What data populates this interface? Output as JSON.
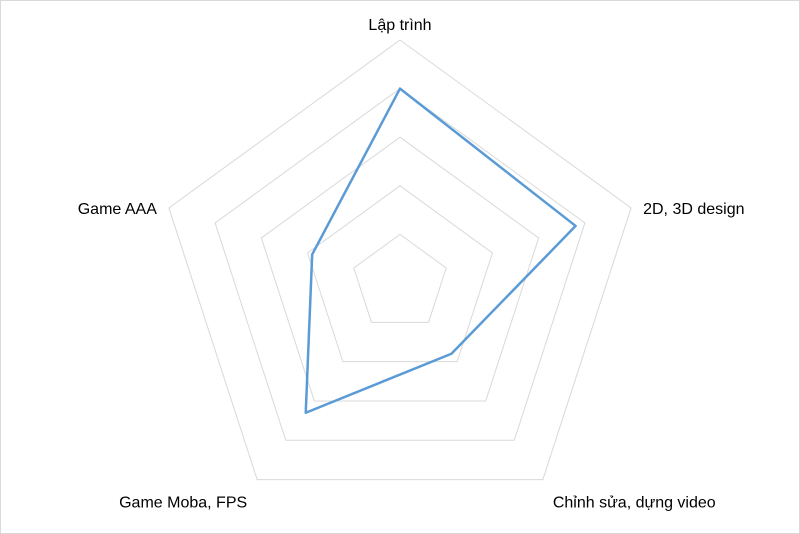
{
  "chart_data": {
    "type": "radar",
    "categories": [
      "Lập trình",
      "2D, 3D design",
      "Chỉnh sửa, dựng video",
      "Game Moba, FPS",
      "Game AAA"
    ],
    "series": [
      {
        "values": [
          4,
          3.8,
          1.8,
          3.3,
          1.9
        ]
      }
    ],
    "rlim": [
      0,
      5
    ],
    "ring_step": 1,
    "legend": "none",
    "grid": true,
    "colors": {
      "series": "#5b9bd5",
      "grid": "#d9d9d9",
      "frame": "#d9d9d9"
    }
  }
}
